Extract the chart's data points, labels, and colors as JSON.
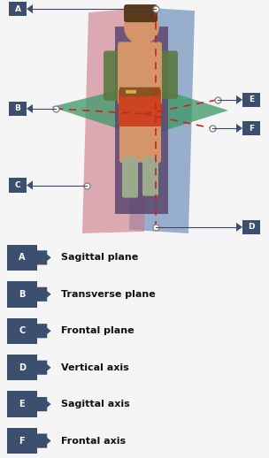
{
  "bg_color": "#f5f5f5",
  "label_bg": "#3d4f6e",
  "label_text_color": "#ffffff",
  "row_bg": "#d8dce8",
  "row_text_color": "#111111",
  "legend_items": [
    {
      "letter": "A",
      "text": "Sagittal plane"
    },
    {
      "letter": "B",
      "text": "Transverse plane"
    },
    {
      "letter": "C",
      "text": "Frontal plane"
    },
    {
      "letter": "D",
      "text": "Vertical axis"
    },
    {
      "letter": "E",
      "text": "Sagittal axis"
    },
    {
      "letter": "F",
      "text": "Frontal axis"
    }
  ],
  "sagittal_plane_color": "#7090bb",
  "sagittal_plane_alpha": 0.7,
  "frontal_plane_color": "#cc7788",
  "frontal_plane_alpha": 0.6,
  "transverse_plane_color": "#3a9966",
  "transverse_plane_alpha": 0.75,
  "axis_color": "#cc2222",
  "figure_width": 3.04,
  "figure_height": 5.18,
  "dpi": 100
}
